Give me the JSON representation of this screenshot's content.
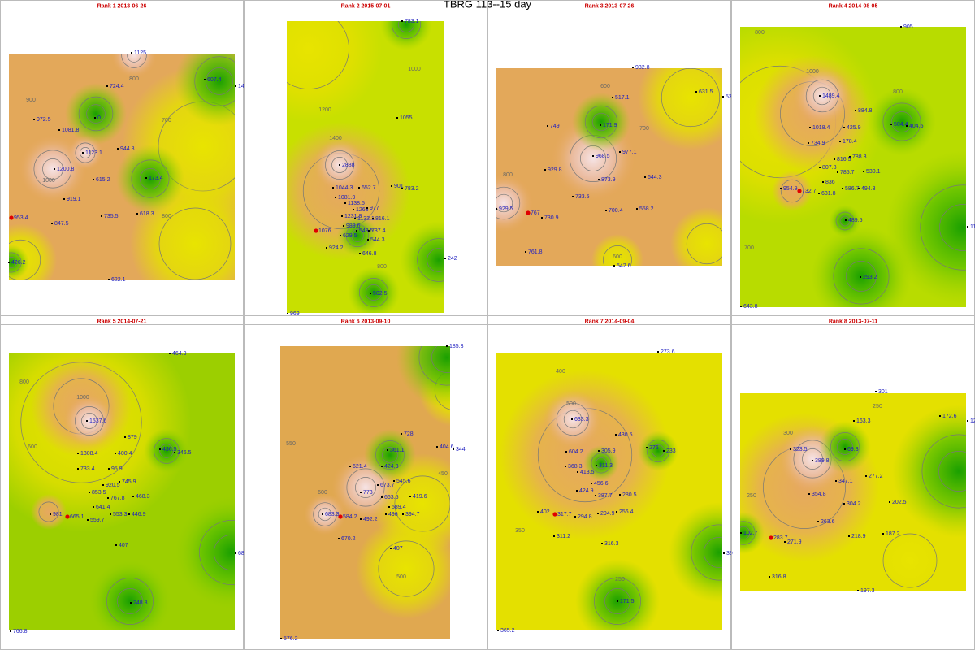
{
  "title": "TBRG 113--15 day",
  "panels": [
    {
      "title": "Rank 1 2013-06-26",
      "stations": [
        "1125",
        "724.4",
        "607.4",
        "14",
        "972.5",
        "0",
        "1081.8",
        "944.8",
        "1123.1",
        "1200.8",
        "615.2",
        "173.4",
        "919.1",
        "618.3",
        "735.5",
        "953.4",
        "847.5",
        "426.2",
        "622.1"
      ],
      "contours": [
        "900",
        "800",
        "700",
        "1000",
        "800"
      ]
    },
    {
      "title": "Rank 2 2015-07-01",
      "stations": [
        "783.1",
        "1055",
        "2888",
        "1044.3",
        "652.7",
        "901",
        "783.2",
        "1081.9",
        "1138.5",
        "1231.8",
        "1263",
        "977",
        "1132.1",
        "816.1",
        "1076",
        "989.6",
        "543.5",
        "737.4",
        "629.5",
        "544.3",
        "924.2",
        "646.8",
        "242",
        "502.5",
        "969"
      ],
      "contours": [
        "1200",
        "1000",
        "1400",
        "800"
      ]
    },
    {
      "title": "Rank 3 2013-07-26",
      "stations": [
        "932.8",
        "517.1",
        "631.5",
        "53",
        "749",
        "171.9",
        "977.1",
        "968.5",
        "929.8",
        "873.9",
        "644.3",
        "733.5",
        "700.4",
        "558.2",
        "929.5",
        "767",
        "730.9",
        "761.8",
        "542.6"
      ],
      "contours": [
        "600",
        "700",
        "800",
        "600"
      ]
    },
    {
      "title": "Rank 4 2014-08-05",
      "stations": [
        "905",
        "1489.4",
        "884.8",
        "1018.4",
        "425.9",
        "504.4",
        "404.5",
        "734.9",
        "178.4",
        "788.3",
        "816.5",
        "807.8",
        "785.7",
        "530.1",
        "836",
        "954.9",
        "732.7",
        "631.8",
        "586.7",
        "494.3",
        "11",
        "489.5",
        "293.2",
        "643.8"
      ],
      "contours": [
        "800",
        "1000",
        "800",
        "700"
      ]
    },
    {
      "title": "Rank 5 2014-07-21",
      "stations": [
        "464.9",
        "1537.6",
        "879",
        "400.4",
        "1308.4",
        "436.5",
        "346.5",
        "733.4",
        "95.9",
        "920.5",
        "745.9",
        "853.5",
        "767.8",
        "468.3",
        "641.4",
        "981",
        "665.1",
        "559.7",
        "553.3",
        "446.9",
        "68",
        "407",
        "248.8",
        "766.8"
      ],
      "contours": [
        "800",
        "1000",
        "600"
      ]
    },
    {
      "title": "Rank 6 2013-09-10",
      "stations": [
        "185.3",
        "728",
        "404.6",
        "344",
        "361.1",
        "621.4",
        "424.3",
        "545.6",
        "673.7",
        "773",
        "663.5",
        "419.6",
        "589.4",
        "683.3",
        "584.2",
        "492.2",
        "496",
        "394.7",
        "670.2",
        "407",
        "576.2"
      ],
      "contours": [
        "550",
        "600",
        "500",
        "450"
      ]
    },
    {
      "title": "Rank 7 2014-09-04",
      "stations": [
        "273.6",
        "633.3",
        "430.5",
        "604.2",
        "305.9",
        "275",
        "233",
        "368.3",
        "311.3",
        "413.5",
        "456.6",
        "424.9",
        "387.7",
        "280.5",
        "402",
        "317.7",
        "294.8",
        "294.9",
        "256.4",
        "311.2",
        "316.3",
        "39",
        "171.5",
        "365.2"
      ],
      "contours": [
        "400",
        "500",
        "350",
        "250"
      ]
    },
    {
      "title": "Rank 8 2013-07-11",
      "stations": [
        "301",
        "163.3",
        "172.6",
        "12",
        "323.5",
        "69.3",
        "389.8",
        "347.1",
        "277.2",
        "354.8",
        "304.2",
        "202.5",
        "263.6",
        "102.7",
        "283.7",
        "271.9",
        "218.9",
        "187.2",
        "316.8",
        "197.3"
      ],
      "contours": [
        "250",
        "300",
        "250"
      ]
    }
  ]
}
